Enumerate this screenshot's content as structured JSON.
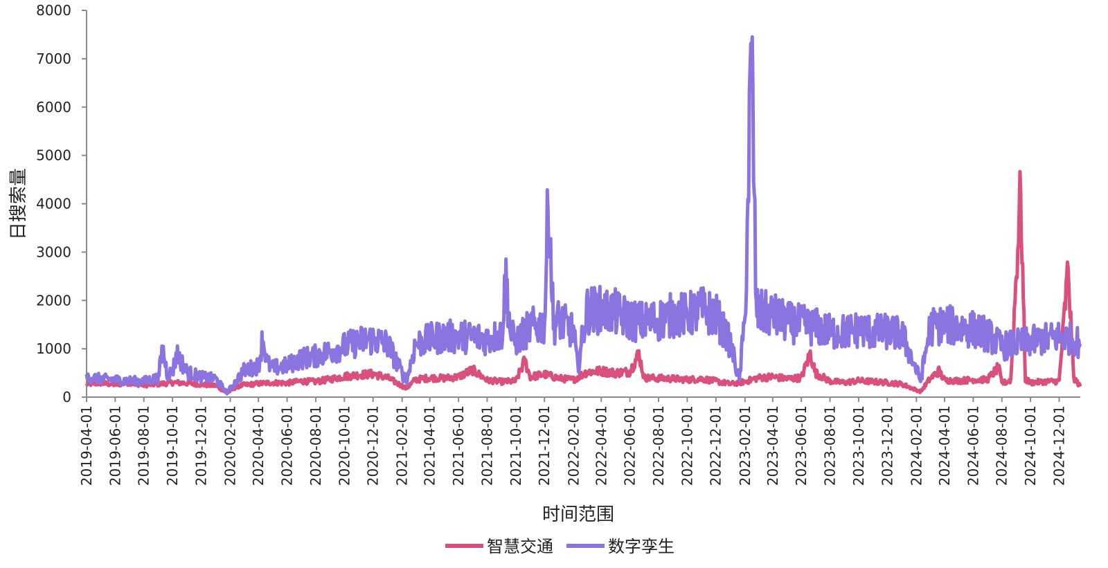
{
  "chart_data": {
    "type": "line",
    "title": "",
    "xlabel": "时间范围",
    "ylabel": "日搜索量",
    "x_range": [
      "2019-04-01",
      "2025-01-15"
    ],
    "ylim": [
      0,
      8000
    ],
    "yticks": [
      0,
      1000,
      2000,
      3000,
      4000,
      5000,
      6000,
      7000,
      8000
    ],
    "xtick_labels": [
      "2019-04-01",
      "2019-06-01",
      "2019-08-01",
      "2019-10-01",
      "2019-12-01",
      "2020-02-01",
      "2020-04-01",
      "2020-06-01",
      "2020-08-01",
      "2020-10-01",
      "2020-12-01",
      "2021-02-01",
      "2021-04-01",
      "2021-06-01",
      "2021-08-01",
      "2021-10-01",
      "2021-12-01",
      "2022-02-01",
      "2022-04-01",
      "2022-06-01",
      "2022-08-01",
      "2022-10-01",
      "2022-12-01",
      "2023-02-01",
      "2023-04-01",
      "2023-06-01",
      "2023-08-01",
      "2023-10-01",
      "2023-12-01",
      "2024-02-01",
      "2024-04-01",
      "2024-06-01",
      "2024-08-01",
      "2024-10-01",
      "2024-12-01"
    ],
    "grid": false,
    "legend_position": "bottom",
    "series": [
      {
        "name": "智慧交通",
        "color": "#d94f7e",
        "data": [
          [
            "2019-04-01",
            270
          ],
          [
            "2019-05-01",
            290
          ],
          [
            "2019-06-01",
            260
          ],
          [
            "2019-07-01",
            300
          ],
          [
            "2019-08-01",
            250
          ],
          [
            "2019-09-01",
            270
          ],
          [
            "2019-10-01",
            300
          ],
          [
            "2019-11-01",
            290
          ],
          [
            "2019-12-01",
            260
          ],
          [
            "2020-01-01",
            240
          ],
          [
            "2020-01-25",
            80
          ],
          [
            "2020-02-15",
            220
          ],
          [
            "2020-03-01",
            250
          ],
          [
            "2020-04-01",
            280
          ],
          [
            "2020-05-01",
            300
          ],
          [
            "2020-06-01",
            290
          ],
          [
            "2020-07-01",
            330
          ],
          [
            "2020-08-01",
            320
          ],
          [
            "2020-09-01",
            370
          ],
          [
            "2020-10-01",
            430
          ],
          [
            "2020-11-01",
            460
          ],
          [
            "2020-12-01",
            480
          ],
          [
            "2021-01-01",
            400
          ],
          [
            "2021-02-10",
            180
          ],
          [
            "2021-03-01",
            360
          ],
          [
            "2021-04-01",
            400
          ],
          [
            "2021-05-01",
            390
          ],
          [
            "2021-06-01",
            420
          ],
          [
            "2021-07-01",
            560
          ],
          [
            "2021-08-01",
            350
          ],
          [
            "2021-09-01",
            320
          ],
          [
            "2021-10-01",
            330
          ],
          [
            "2021-10-20",
            750
          ],
          [
            "2021-11-01",
            420
          ],
          [
            "2021-12-01",
            470
          ],
          [
            "2022-01-01",
            390
          ],
          [
            "2022-02-01",
            360
          ],
          [
            "2022-03-01",
            520
          ],
          [
            "2022-04-01",
            540
          ],
          [
            "2022-05-01",
            500
          ],
          [
            "2022-06-01",
            530
          ],
          [
            "2022-06-20",
            900
          ],
          [
            "2022-07-01",
            400
          ],
          [
            "2022-08-01",
            390
          ],
          [
            "2022-09-01",
            380
          ],
          [
            "2022-10-01",
            360
          ],
          [
            "2022-11-01",
            380
          ],
          [
            "2022-12-01",
            330
          ],
          [
            "2023-01-01",
            270
          ],
          [
            "2023-02-01",
            320
          ],
          [
            "2023-03-01",
            400
          ],
          [
            "2023-04-01",
            420
          ],
          [
            "2023-05-01",
            380
          ],
          [
            "2023-06-01",
            400
          ],
          [
            "2023-06-20",
            900
          ],
          [
            "2023-07-01",
            500
          ],
          [
            "2023-08-01",
            330
          ],
          [
            "2023-09-01",
            300
          ],
          [
            "2023-10-01",
            340
          ],
          [
            "2023-11-01",
            320
          ],
          [
            "2023-12-01",
            300
          ],
          [
            "2024-01-01",
            270
          ],
          [
            "2024-02-10",
            110
          ],
          [
            "2024-03-01",
            380
          ],
          [
            "2024-03-20",
            540
          ],
          [
            "2024-04-01",
            350
          ],
          [
            "2024-05-01",
            340
          ],
          [
            "2024-06-01",
            360
          ],
          [
            "2024-07-01",
            360
          ],
          [
            "2024-07-25",
            620
          ],
          [
            "2024-08-01",
            280
          ],
          [
            "2024-08-20",
            350
          ],
          [
            "2024-09-10",
            4280
          ],
          [
            "2024-09-20",
            370
          ],
          [
            "2024-10-01",
            300
          ],
          [
            "2024-11-01",
            320
          ],
          [
            "2024-12-01",
            330
          ],
          [
            "2024-12-20",
            2680
          ],
          [
            "2025-01-01",
            400
          ],
          [
            "2025-01-15",
            220
          ]
        ]
      },
      {
        "name": "数字孪生",
        "color": "#8c74e0",
        "data": [
          [
            "2019-04-01",
            420
          ],
          [
            "2019-05-01",
            380
          ],
          [
            "2019-06-01",
            360
          ],
          [
            "2019-07-01",
            340
          ],
          [
            "2019-08-01",
            330
          ],
          [
            "2019-09-01",
            400
          ],
          [
            "2019-09-10",
            1000
          ],
          [
            "2019-09-20",
            480
          ],
          [
            "2019-10-01",
            520
          ],
          [
            "2019-10-10",
            900
          ],
          [
            "2019-11-01",
            520
          ],
          [
            "2019-12-01",
            420
          ],
          [
            "2020-01-01",
            380
          ],
          [
            "2020-01-25",
            90
          ],
          [
            "2020-02-15",
            350
          ],
          [
            "2020-03-01",
            550
          ],
          [
            "2020-04-01",
            650
          ],
          [
            "2020-04-10",
            1210
          ],
          [
            "2020-04-20",
            700
          ],
          [
            "2020-05-01",
            600
          ],
          [
            "2020-06-01",
            650
          ],
          [
            "2020-07-01",
            800
          ],
          [
            "2020-08-01",
            850
          ],
          [
            "2020-09-01",
            950
          ],
          [
            "2020-10-01",
            1050
          ],
          [
            "2020-11-01",
            1150
          ],
          [
            "2020-12-01",
            1200
          ],
          [
            "2021-01-01",
            1100
          ],
          [
            "2021-02-10",
            320
          ],
          [
            "2021-03-01",
            1100
          ],
          [
            "2021-04-01",
            1200
          ],
          [
            "2021-05-01",
            1250
          ],
          [
            "2021-06-01",
            1250
          ],
          [
            "2021-07-01",
            1250
          ],
          [
            "2021-08-01",
            1200
          ],
          [
            "2021-09-01",
            1300
          ],
          [
            "2021-09-10",
            2470
          ],
          [
            "2021-09-20",
            1300
          ],
          [
            "2021-10-01",
            1150
          ],
          [
            "2021-11-01",
            1450
          ],
          [
            "2021-12-01",
            1500
          ],
          [
            "2021-12-10",
            4280
          ],
          [
            "2021-12-20",
            1500
          ],
          [
            "2022-01-01",
            1600
          ],
          [
            "2022-02-01",
            1350
          ],
          [
            "2022-02-10",
            600
          ],
          [
            "2022-03-01",
            1800
          ],
          [
            "2022-04-01",
            1800
          ],
          [
            "2022-05-01",
            1750
          ],
          [
            "2022-06-01",
            1600
          ],
          [
            "2022-07-01",
            1550
          ],
          [
            "2022-08-01",
            1600
          ],
          [
            "2022-09-01",
            1700
          ],
          [
            "2022-10-01",
            1700
          ],
          [
            "2022-11-01",
            1800
          ],
          [
            "2022-12-01",
            1700
          ],
          [
            "2023-01-01",
            1100
          ],
          [
            "2023-01-20",
            350
          ],
          [
            "2023-02-01",
            1650
          ],
          [
            "2023-02-15",
            7170
          ],
          [
            "2023-02-25",
            1800
          ],
          [
            "2023-03-01",
            1750
          ],
          [
            "2023-04-01",
            1700
          ],
          [
            "2023-05-01",
            1550
          ],
          [
            "2023-06-01",
            1500
          ],
          [
            "2023-07-01",
            1450
          ],
          [
            "2023-08-01",
            1350
          ],
          [
            "2023-09-01",
            1350
          ],
          [
            "2023-10-01",
            1400
          ],
          [
            "2023-11-01",
            1350
          ],
          [
            "2023-12-01",
            1350
          ],
          [
            "2024-01-01",
            1300
          ],
          [
            "2024-02-10",
            350
          ],
          [
            "2024-03-01",
            1450
          ],
          [
            "2024-04-01",
            1500
          ],
          [
            "2024-05-01",
            1450
          ],
          [
            "2024-06-01",
            1400
          ],
          [
            "2024-07-01",
            1300
          ],
          [
            "2024-08-01",
            1050
          ],
          [
            "2024-09-01",
            1100
          ],
          [
            "2024-10-01",
            1150
          ],
          [
            "2024-11-01",
            1200
          ],
          [
            "2024-12-01",
            1250
          ],
          [
            "2025-01-01",
            1200
          ],
          [
            "2025-01-15",
            1100
          ]
        ]
      }
    ]
  }
}
